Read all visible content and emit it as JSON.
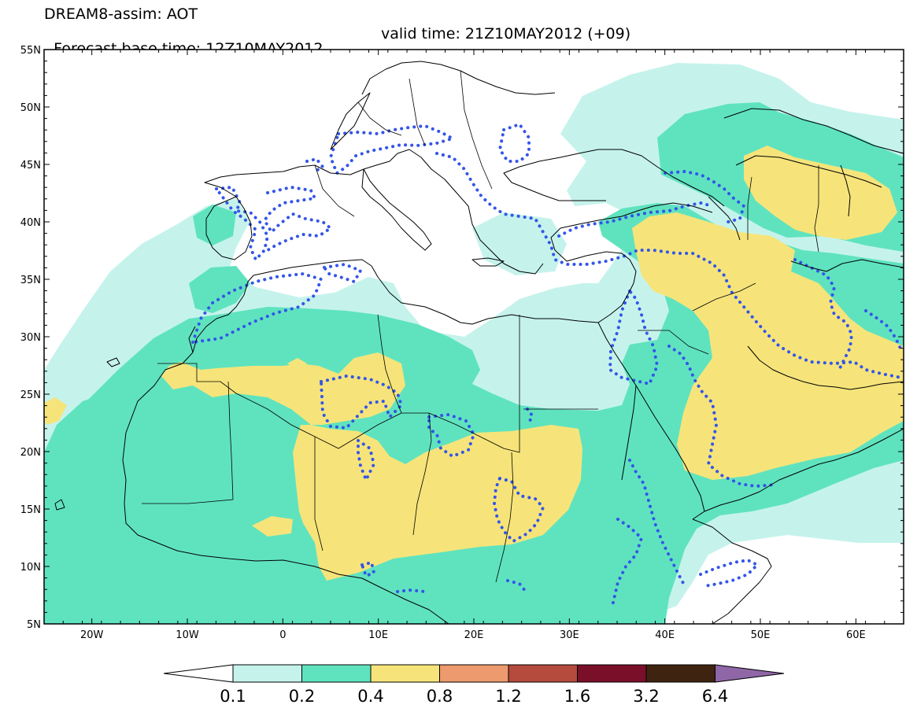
{
  "header": {
    "title": "DREAM8-assim: AOT",
    "base_time": "Forecast base time: 12Z10MAY2012",
    "valid_time": "valid time: 21Z10MAY2012 (+09)"
  },
  "map": {
    "lon_range": [
      -25,
      65
    ],
    "lat_range": [
      5,
      55
    ],
    "lat_ticks": [
      "55N",
      "50N",
      "45N",
      "40N",
      "35N",
      "30N",
      "25N",
      "20N",
      "15N",
      "10N",
      "5N"
    ],
    "lon_ticks": [
      "20W",
      "10W",
      "0",
      "10E",
      "20E",
      "30E",
      "40E",
      "50E",
      "60E"
    ]
  },
  "colorbar": {
    "labels": [
      "0.1",
      "0.2",
      "0.4",
      "0.8",
      "1.2",
      "1.6",
      "3.2",
      "6.4"
    ],
    "colors": [
      "#c5f3ec",
      "#5fe3bf",
      "#f6e47a",
      "#ec9a6e",
      "#b54b3c",
      "#7a0f2a",
      "#3e2410",
      "#8f67a7"
    ],
    "under_color": "#ffffff",
    "over_color": "#8f67a7"
  },
  "legend_colors": {
    "aod_0_1": "#c5f3ec",
    "aod_0_2": "#5fe3bf",
    "aod_0_4": "#f6e47a",
    "observation_contour": "#3355e8"
  }
}
